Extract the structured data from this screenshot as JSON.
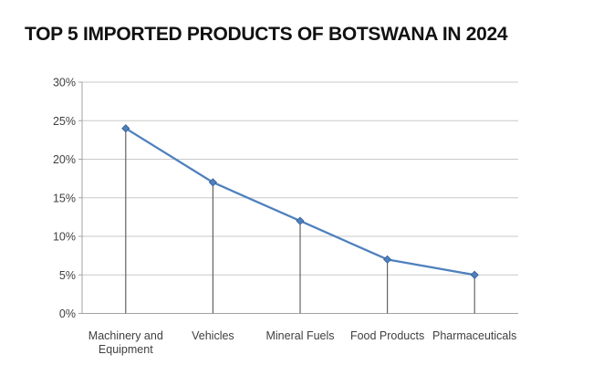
{
  "chart_data": {
    "type": "line",
    "title": "TOP 5 IMPORTED PRODUCTS OF BOTSWANA IN 2024",
    "categories": [
      "Machinery and Equipment",
      "Vehicles",
      "Mineral Fuels",
      "Food Products",
      "Pharmaceuticals"
    ],
    "category_label_lines": [
      [
        "Machinery and",
        "Equipment"
      ],
      [
        "Vehicles"
      ],
      [
        "Mineral Fuels"
      ],
      [
        "Food Products"
      ],
      [
        "Pharmaceuticals"
      ]
    ],
    "values": [
      24,
      17,
      12,
      7,
      5
    ],
    "unit": "%",
    "series_name": "",
    "xlabel": "",
    "ylabel": "",
    "ylim": [
      0,
      30
    ],
    "ytick_values": [
      0,
      5,
      10,
      15,
      20,
      25,
      30
    ],
    "ytick_labels": [
      "0%",
      "5%",
      "10%",
      "15%",
      "20%",
      "25%",
      "30%"
    ],
    "grid": true,
    "legend": "none",
    "marker": "diamond",
    "drop_lines": true,
    "colors": {
      "line": "#4F81BD",
      "marker_fill": "#4F81BD",
      "marker_edge": "#2E5A94",
      "gridline": "#C9C9C9",
      "axis": "#A3A3A3",
      "drop_line": "#636363",
      "tick_text": "#404040",
      "title_text": "#111111",
      "background": "#FFFFFF"
    }
  }
}
